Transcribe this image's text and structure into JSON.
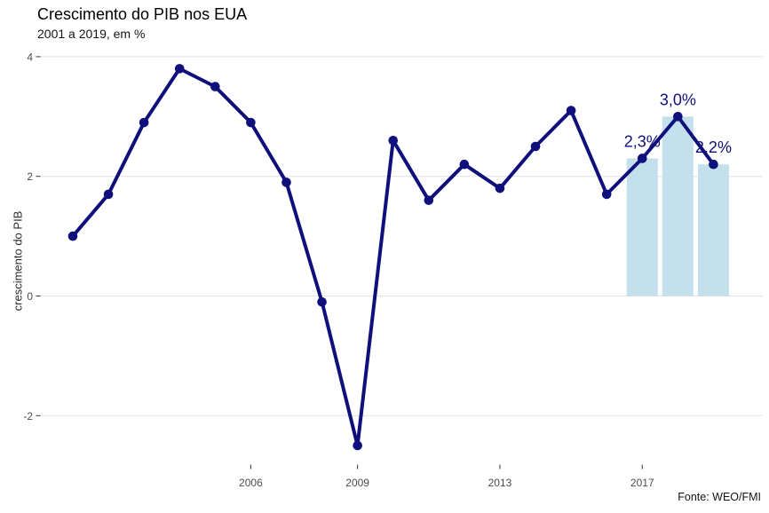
{
  "header": {
    "title": "Crescimento do PIB nos EUA",
    "subtitle": "2001 a 2019, em %"
  },
  "caption": "Fonte: WEO/FMI",
  "chart_data": {
    "type": "line",
    "title": "Crescimento do PIB nos EUA",
    "subtitle": "2001 a 2019, em %",
    "xlabel": "",
    "ylabel": "crescimento do PIB",
    "caption": "Fonte: WEO/FMI",
    "x": [
      2001,
      2002,
      2003,
      2004,
      2005,
      2006,
      2007,
      2008,
      2009,
      2010,
      2011,
      2012,
      2013,
      2014,
      2015,
      2016,
      2017,
      2018,
      2019
    ],
    "values": [
      1.0,
      1.7,
      2.9,
      3.8,
      3.5,
      2.9,
      1.9,
      -0.1,
      -2.5,
      2.6,
      1.6,
      2.2,
      1.8,
      2.5,
      3.1,
      1.7,
      2.3,
      3.0,
      2.2
    ],
    "xticks": [
      2006,
      2009,
      2013,
      2017
    ],
    "yticks": [
      4,
      2,
      0,
      -2
    ],
    "ytick_labels": [
      "4",
      "2",
      "0",
      "-2"
    ],
    "ylim": [
      -2.9,
      4.15
    ],
    "grid": "horizontal-only",
    "legend": "none",
    "highlight": {
      "type": "bars",
      "years": [
        2017,
        2018,
        2019
      ],
      "values": [
        2.3,
        3.0,
        2.2
      ],
      "labels": [
        "2,3%",
        "3,0%",
        "2,2%"
      ]
    },
    "colors": {
      "line": "#10107c",
      "point": "#10107c",
      "annotation_text": "#10107c",
      "bar": "#c3e0ec",
      "gridline": "#e4e4e4",
      "tick_mark": "#333333",
      "tick_label": "#4d4d4d"
    }
  }
}
